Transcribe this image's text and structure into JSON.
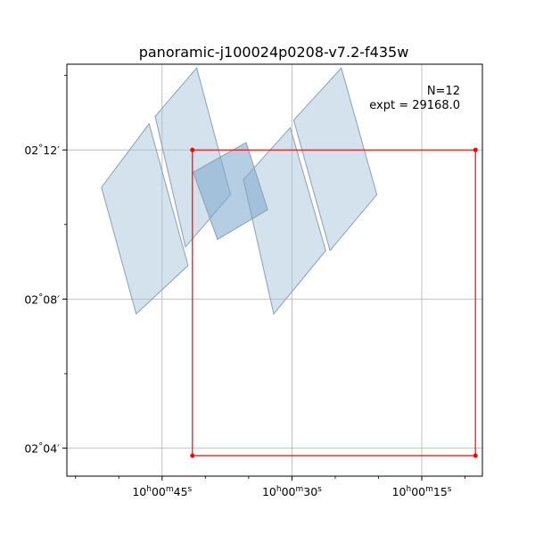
{
  "chart_data": {
    "type": "scatter",
    "title": "panoramic-j100024p0208-v7.2-f435w",
    "xlabel": "",
    "ylabel": "",
    "grid": true,
    "x_axis": {
      "unit": "right ascension",
      "direction": "decreasing to the right",
      "ticks": [
        {
          "value_sec": 45,
          "h": "10",
          "m": "00",
          "s": "45"
        },
        {
          "value_sec": 30,
          "h": "10",
          "m": "00",
          "s": "30"
        },
        {
          "value_sec": 15,
          "h": "10",
          "m": "00",
          "s": "15"
        }
      ],
      "minor_step_sec": 5
    },
    "y_axis": {
      "unit": "declination (arcmin past 2°00')",
      "ticks": [
        {
          "value_min": 12,
          "deg": "02",
          "min": "12"
        },
        {
          "value_min": 8,
          "deg": "02",
          "min": "08"
        },
        {
          "value_min": 4,
          "deg": "02",
          "min": "04"
        }
      ],
      "minor_step_min": 2
    },
    "annotations": {
      "count": "N=12",
      "exposure": "expt = 29168.0"
    },
    "footprints": {
      "fill": "#a9c6de",
      "fill_opacity": 0.5,
      "edge": "#8c9fb3",
      "overlap_fill": "#7aa5cc",
      "polygons": [
        {
          "name": "chip-1",
          "points": [
            [
              52.0,
              11.0
            ],
            [
              46.5,
              12.7
            ],
            [
              42.0,
              8.9
            ],
            [
              48.0,
              7.6
            ]
          ]
        },
        {
          "name": "chip-2",
          "points": [
            [
              45.8,
              12.9
            ],
            [
              41.0,
              14.2
            ],
            [
              37.1,
              10.8
            ],
            [
              42.3,
              9.4
            ]
          ]
        },
        {
          "name": "chip-3",
          "points": [
            [
              35.6,
              11.2
            ],
            [
              30.2,
              12.6
            ],
            [
              26.1,
              9.3
            ],
            [
              32.1,
              7.6
            ]
          ]
        },
        {
          "name": "chip-4",
          "points": [
            [
              29.8,
              12.8
            ],
            [
              24.3,
              14.2
            ],
            [
              20.2,
              10.8
            ],
            [
              25.6,
              9.3
            ]
          ]
        }
      ],
      "overlap": [
        [
          41.4,
          11.4
        ],
        [
          35.3,
          12.2
        ],
        [
          32.8,
          10.4
        ],
        [
          38.6,
          9.6
        ]
      ]
    },
    "region": {
      "color": "#ff0000",
      "corners": [
        [
          41.5,
          12.0
        ],
        [
          8.8,
          12.0
        ],
        [
          8.8,
          3.8
        ],
        [
          41.5,
          3.8
        ]
      ]
    },
    "xlim": [
      56.0,
      8.0
    ],
    "ylim": [
      3.25,
      14.3
    ]
  }
}
